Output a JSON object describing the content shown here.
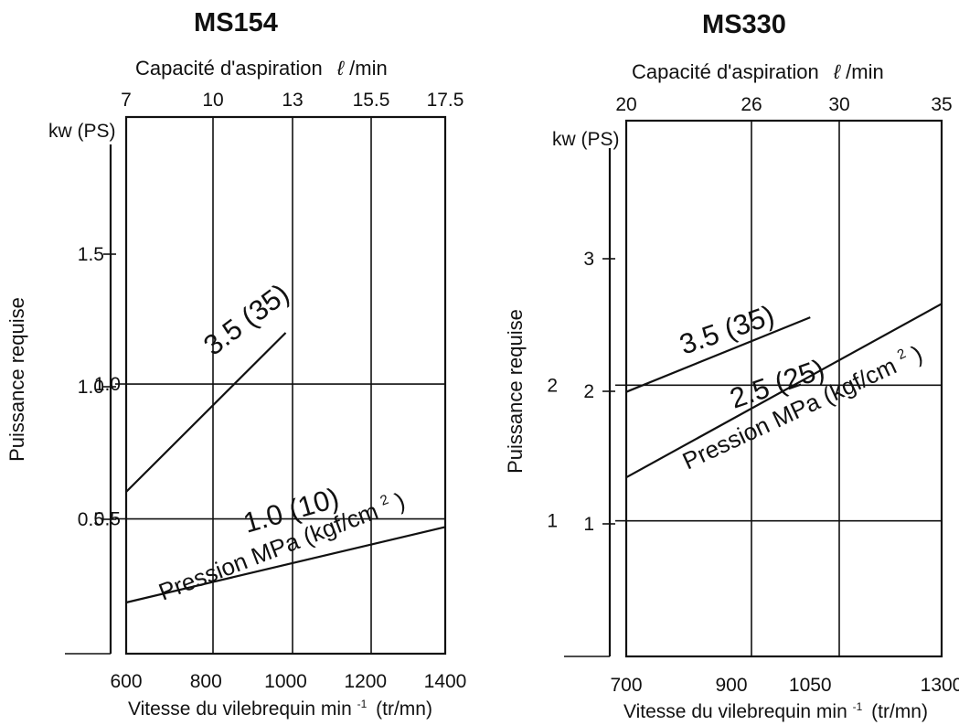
{
  "chart_data": [
    {
      "type": "line",
      "title": "MS154",
      "xlabel": "Vitesse du vilebrequin min",
      "xlabel_sup": "-1",
      "xlabel_unit": "(tr/mn)",
      "x_ticks": [
        "600",
        "800",
        "1000",
        "1200",
        "1400"
      ],
      "x_values": [
        600,
        800,
        1000,
        1200,
        1400
      ],
      "xlim": [
        600,
        1400
      ],
      "top_axis_label": "Capacité d'aspiration",
      "top_axis_unit_symbol": "ℓ",
      "top_axis_unit": "/min",
      "top_ticks": [
        "7",
        "10",
        "13",
        "15.5",
        "17.5"
      ],
      "ylabel": "Puissance requise",
      "y_unit_label": "kw (PS)",
      "kw_ticks": [
        {
          "label": "1.0",
          "value": 1.0
        },
        {
          "label": "0.5",
          "value": 0.5
        }
      ],
      "ps_ticks": [
        {
          "label": "1.5",
          "value": 1.5
        },
        {
          "label": "1.0",
          "value": 1.0
        },
        {
          "label": "0.5",
          "value": 0.5
        }
      ],
      "ylim_kw": [
        0,
        1.99
      ],
      "grid": true,
      "series": [
        {
          "name": "3.5 (35)",
          "x": [
            600,
            1000
          ],
          "y": [
            0.6,
            1.19
          ]
        },
        {
          "name": "1.0 (10)",
          "x": [
            600,
            1400
          ],
          "y": [
            0.19,
            0.47
          ]
        }
      ],
      "annotations": [
        "Pression MPa (kgf/cm",
        "2",
        ")"
      ]
    },
    {
      "type": "line",
      "title": "MS330",
      "xlabel": "Vitesse du vilebrequin min",
      "xlabel_sup": "-1",
      "xlabel_unit": "(tr/mn)",
      "x_ticks": [
        "700",
        "900",
        "1050",
        "1300"
      ],
      "x_values": [
        700,
        900,
        1050,
        1300
      ],
      "xlim": [
        700,
        1300
      ],
      "top_axis_label": "Capacité d'aspiration",
      "top_axis_unit_symbol": "ℓ",
      "top_axis_unit": "/min",
      "top_ticks": [
        "20",
        "26",
        "30",
        "35"
      ],
      "ylabel": "Puissance requise",
      "y_unit_label": "kw (PS)",
      "kw_ticks": [
        {
          "label": "2",
          "value": 2
        },
        {
          "label": "1",
          "value": 1
        }
      ],
      "ps_ticks": [
        {
          "label": "3",
          "value": 3
        },
        {
          "label": "2",
          "value": 2
        },
        {
          "label": "1",
          "value": 1
        }
      ],
      "ylim_kw": [
        0,
        3.95
      ],
      "grid": true,
      "series": [
        {
          "name": "3.5 (35)",
          "x": [
            700,
            1050
          ],
          "y": [
            1.95,
            2.5
          ]
        },
        {
          "name": "2.5 (25)",
          "x": [
            700,
            1300
          ],
          "y": [
            1.32,
            2.6
          ]
        }
      ],
      "annotations": [
        "Pression MPa (kgf/cm",
        "2",
        ")"
      ]
    }
  ]
}
